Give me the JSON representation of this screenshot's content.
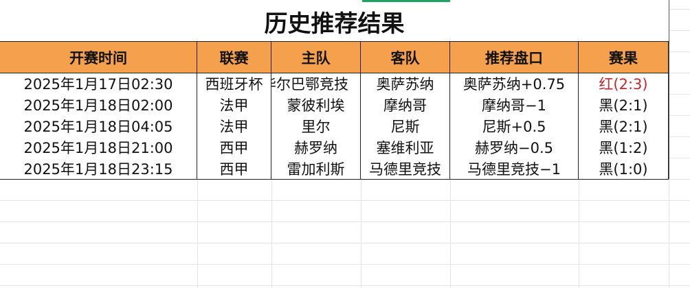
{
  "title": "历史推荐结果",
  "headers": [
    "开赛时间",
    "联赛",
    "主队",
    "客队",
    "推荐盘口",
    "赛果"
  ],
  "rows": [
    [
      "2025年1月17日02:30",
      "西班牙杯",
      "毕尔巴鄂竞技",
      "奥萨苏纳",
      "奥萨苏纳+0.75",
      "红(2:3)"
    ],
    [
      "2025年1月18日02:00",
      "法甲",
      "蒙彼利埃",
      "摩纳哥",
      "摩纳哥−1",
      "黑(2:1)"
    ],
    [
      "2025年1月18日04:05",
      "法甲",
      "里尔",
      "尼斯",
      "尼斯+0.5",
      "黑(2:1)"
    ],
    [
      "2025年1月18日21:00",
      "西甲",
      "赫罗纳",
      "塞维利亚",
      "赫罗纳−0.5",
      "黑(1:2)"
    ],
    [
      "2025年1月18日23:15",
      "西甲",
      "雷加利斯",
      "马德里竞技",
      "马德里竞技−1",
      "黑(1:0)"
    ]
  ],
  "colors": {
    "header_bg": "#f4a04c",
    "red_result": "#c0282c",
    "selection": "#21a366"
  }
}
